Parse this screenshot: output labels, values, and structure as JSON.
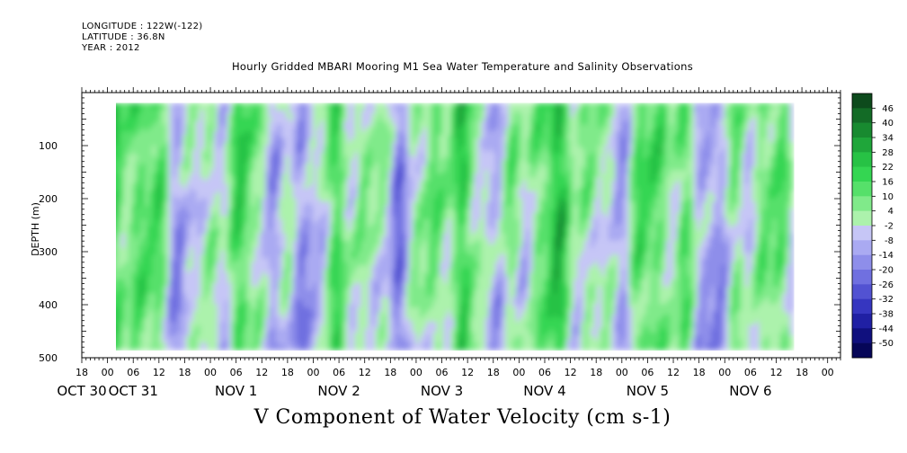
{
  "header": {
    "longitude": "LONGITUDE : 122W(-122)",
    "latitude": "LATITUDE : 36.8N",
    "year": "YEAR : 2012"
  },
  "chart_data": {
    "type": "heatmap",
    "title": "Hourly Gridded MBARI Mooring M1 Sea Water Temperature and Salinity Observations",
    "xlabel": "V Component of Water Velocity (cm s-1)",
    "ylabel": "DEPTH (m)",
    "ylim": [
      500,
      0
    ],
    "y_ticks": [
      100,
      200,
      300,
      400,
      500
    ],
    "x_range_hours": [
      -6,
      171
    ],
    "x_ticks": [
      {
        "label": "18",
        "hour": -6
      },
      {
        "label": "00",
        "hour": 0
      },
      {
        "label": "06",
        "hour": 6
      },
      {
        "label": "12",
        "hour": 12
      },
      {
        "label": "18",
        "hour": 18
      },
      {
        "label": "00",
        "hour": 24
      },
      {
        "label": "06",
        "hour": 30
      },
      {
        "label": "12",
        "hour": 36
      },
      {
        "label": "18",
        "hour": 42
      },
      {
        "label": "00",
        "hour": 48
      },
      {
        "label": "06",
        "hour": 54
      },
      {
        "label": "12",
        "hour": 60
      },
      {
        "label": "18",
        "hour": 66
      },
      {
        "label": "00",
        "hour": 72
      },
      {
        "label": "06",
        "hour": 78
      },
      {
        "label": "12",
        "hour": 84
      },
      {
        "label": "18",
        "hour": 90
      },
      {
        "label": "00",
        "hour": 96
      },
      {
        "label": "06",
        "hour": 102
      },
      {
        "label": "12",
        "hour": 108
      },
      {
        "label": "18",
        "hour": 114
      },
      {
        "label": "00",
        "hour": 120
      },
      {
        "label": "06",
        "hour": 126
      },
      {
        "label": "12",
        "hour": 132
      },
      {
        "label": "18",
        "hour": 138
      },
      {
        "label": "00",
        "hour": 144
      },
      {
        "label": "06",
        "hour": 150
      },
      {
        "label": "12",
        "hour": 156
      },
      {
        "label": "18",
        "hour": 162
      },
      {
        "label": "00",
        "hour": 168
      }
    ],
    "date_labels": [
      {
        "label": "OCT 30",
        "hour": -6
      },
      {
        "label": "OCT 31",
        "hour": 6
      },
      {
        "label": "NOV  1",
        "hour": 30
      },
      {
        "label": "NOV  2",
        "hour": 54
      },
      {
        "label": "NOV  3",
        "hour": 78
      },
      {
        "label": "NOV  4",
        "hour": 102
      },
      {
        "label": "NOV  5",
        "hour": 126
      },
      {
        "label": "NOV  6",
        "hour": 150
      }
    ],
    "colorbar": {
      "labels": [
        "46",
        "40",
        "34",
        "28",
        "22",
        "16",
        "10",
        "4",
        "-2",
        "-8",
        "-14",
        "-20",
        "-26",
        "-32",
        "-38",
        "-44",
        "-50"
      ],
      "colors": [
        "#0d4a1c",
        "#136b26",
        "#188a30",
        "#1fa63a",
        "#27c245",
        "#34d652",
        "#56e06a",
        "#80ea8a",
        "#acf2ac",
        "#c6c6f6",
        "#aaaaf2",
        "#8e8eea",
        "#7070e0",
        "#5252d2",
        "#3636c0",
        "#2020a4",
        "#10107e",
        "#060658"
      ]
    },
    "data_grid_note": "",
    "data_hours": [
      0,
      160
    ],
    "data_depth": [
      20,
      485
    ]
  }
}
